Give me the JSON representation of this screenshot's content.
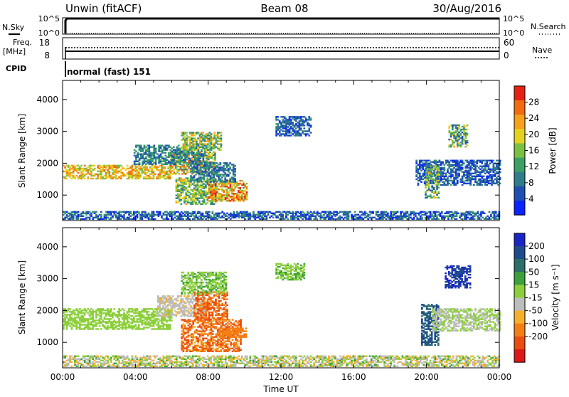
{
  "header": {
    "station": "Unwin (fitACF)",
    "beam": "Beam 08",
    "date": "30/Aug/2016"
  },
  "status_panels": {
    "nsky_label": "N.Sky",
    "nsearch_label": "N.Search",
    "freq_label_line1": "Freq.",
    "freq_label_line2": "[MHz]",
    "nave_label": "Nave",
    "cpid_label": "CPID",
    "cpid_value": "normal (fast) 151",
    "noise_ticks": [
      "10^5",
      "10^0"
    ],
    "freq_ticks": [
      "18",
      "8"
    ],
    "nave_ticks": [
      "60",
      "0"
    ]
  },
  "chart_data": [
    {
      "type": "heatmap",
      "name": "power",
      "ylabel": "Slant Range [km]",
      "yticks": [
        1000,
        2000,
        3000,
        4000
      ],
      "ylim": [
        200,
        4600
      ],
      "xlim": [
        0,
        24
      ],
      "colorbar": {
        "label": "Power [dB]",
        "ticks": [
          4,
          8,
          12,
          16,
          20,
          24,
          28
        ],
        "range": [
          0,
          32
        ],
        "colors": [
          "#0a23ff",
          "#1f4fb2",
          "#2f7d8a",
          "#3aa066",
          "#7ac143",
          "#e3d31d",
          "#f7a11a",
          "#f26b0f",
          "#e52212"
        ]
      },
      "regions": [
        {
          "t0": 0.0,
          "t1": 5.9,
          "r0": 1500,
          "r1": 1950,
          "v0": 15,
          "v1": 27
        },
        {
          "t0": 5.9,
          "t1": 8.4,
          "r0": 1650,
          "r1": 2350,
          "v0": 10,
          "v1": 30
        },
        {
          "t0": 3.9,
          "t1": 7.9,
          "r0": 1950,
          "r1": 2550,
          "v0": 4,
          "v1": 14
        },
        {
          "t0": 6.5,
          "t1": 8.7,
          "r0": 2400,
          "r1": 2950,
          "v0": 8,
          "v1": 24
        },
        {
          "t0": 6.2,
          "t1": 8.4,
          "r0": 700,
          "r1": 1550,
          "v0": 8,
          "v1": 22
        },
        {
          "t0": 8.0,
          "t1": 10.1,
          "r0": 800,
          "r1": 1450,
          "v0": 14,
          "v1": 31
        },
        {
          "t0": 7.0,
          "t1": 9.5,
          "r0": 1400,
          "r1": 2000,
          "v0": 4,
          "v1": 13
        },
        {
          "t0": 11.7,
          "t1": 13.6,
          "r0": 2850,
          "r1": 3450,
          "v0": 2,
          "v1": 11
        },
        {
          "t0": 19.4,
          "t1": 24.0,
          "r0": 1300,
          "r1": 2100,
          "v0": 2,
          "v1": 11
        },
        {
          "t0": 19.9,
          "t1": 20.7,
          "r0": 900,
          "r1": 1900,
          "v0": 4,
          "v1": 22
        },
        {
          "t0": 21.2,
          "t1": 22.2,
          "r0": 2500,
          "r1": 3200,
          "v0": 5,
          "v1": 22
        },
        {
          "t0": 0.0,
          "t1": 24.0,
          "r0": 230,
          "r1": 480,
          "v0": 1,
          "v1": 12
        }
      ]
    },
    {
      "type": "heatmap",
      "name": "velocity",
      "ylabel": "Slant Range [km]",
      "yticks": [
        1000,
        2000,
        3000,
        4000
      ],
      "ylim": [
        200,
        4600
      ],
      "xlim": [
        0,
        24
      ],
      "xlabel": "Time UT",
      "xticks": [
        "00:00",
        "04:00",
        "08:00",
        "12:00",
        "16:00",
        "20:00",
        "00:00"
      ],
      "xtick_values": [
        0,
        4,
        8,
        12,
        16,
        20,
        24
      ],
      "colorbar": {
        "label": "Velocity [m s⁻¹]",
        "ticks": [
          "200",
          "100",
          "50",
          "15",
          "-15",
          "-50",
          "-100",
          "-200"
        ],
        "colors": [
          "#1a25c8",
          "#1f4b8c",
          "#2b6e6a",
          "#3ca03b",
          "#8ccf3c",
          "#bdbdbd",
          "#f5b02b",
          "#f57e14",
          "#ea4d10",
          "#dd1818"
        ]
      },
      "regions": [
        {
          "t0": 0.0,
          "t1": 6.0,
          "r0": 1400,
          "r1": 2050,
          "v0": -12,
          "v1": 12
        },
        {
          "t0": 5.2,
          "t1": 7.8,
          "r0": 1800,
          "r1": 2450,
          "v0": -60,
          "v1": -15
        },
        {
          "t0": 7.2,
          "t1": 9.0,
          "r0": 1700,
          "r1": 2600,
          "v0": -300,
          "v1": -100
        },
        {
          "t0": 6.5,
          "t1": 9.8,
          "r0": 700,
          "r1": 1700,
          "v0": -300,
          "v1": -60
        },
        {
          "t0": 8.5,
          "t1": 10.1,
          "r0": 1150,
          "r1": 1450,
          "v0": -200,
          "v1": -100
        },
        {
          "t0": 6.5,
          "t1": 9.0,
          "r0": 2500,
          "r1": 3200,
          "v0": -20,
          "v1": 30
        },
        {
          "t0": 11.7,
          "t1": 13.3,
          "r0": 2950,
          "r1": 3450,
          "v0": -10,
          "v1": 30
        },
        {
          "t0": 19.7,
          "t1": 20.6,
          "r0": 900,
          "r1": 2200,
          "v0": 50,
          "v1": 200
        },
        {
          "t0": 21.0,
          "t1": 22.4,
          "r0": 2700,
          "r1": 3400,
          "v0": 100,
          "v1": 300
        },
        {
          "t0": 20.3,
          "t1": 24.0,
          "r0": 1350,
          "r1": 2050,
          "v0": -40,
          "v1": 10
        },
        {
          "t0": 0.0,
          "t1": 24.0,
          "r0": 230,
          "r1": 550,
          "v0": -80,
          "v1": 30
        }
      ]
    }
  ]
}
